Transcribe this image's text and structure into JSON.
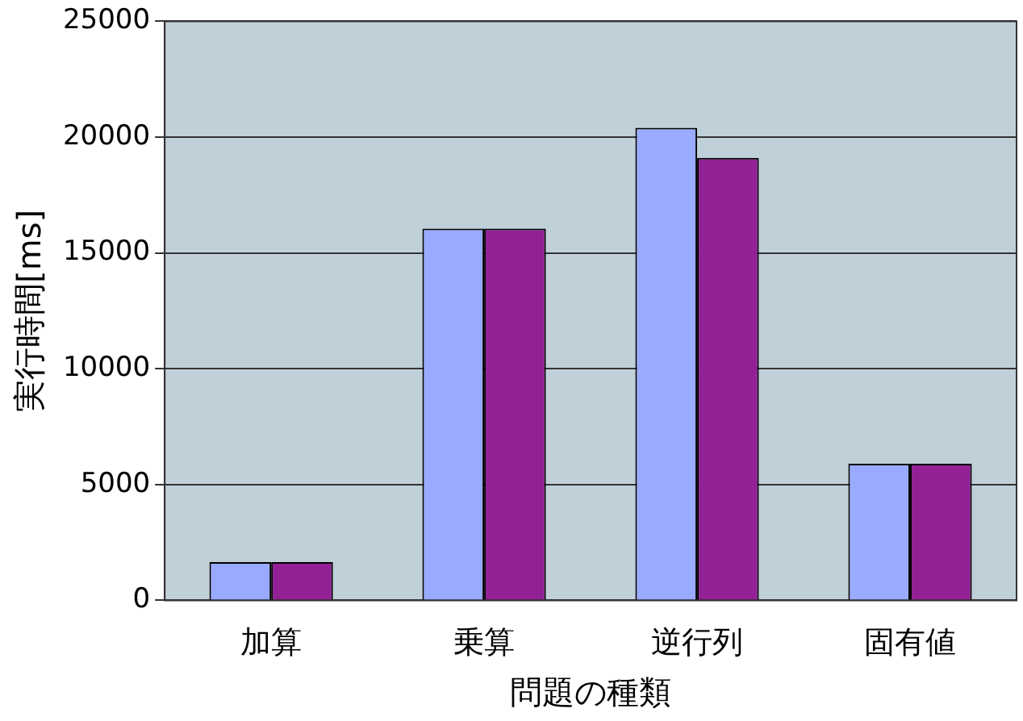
{
  "chart_data": {
    "type": "bar",
    "xlabel": "問題の種類",
    "ylabel": "実行時間[ms]",
    "categories": [
      "加算",
      "乗算",
      "逆行列",
      "固有値"
    ],
    "series": [
      {
        "color": "#99aaff",
        "values": [
          1650,
          16050,
          20400,
          5900
        ]
      },
      {
        "color": "#912195",
        "values": [
          1650,
          16050,
          19100,
          5900
        ]
      }
    ],
    "ylim": [
      0,
      25000
    ],
    "yticks": [
      0,
      5000,
      10000,
      15000,
      20000,
      25000
    ],
    "grid": "y"
  }
}
